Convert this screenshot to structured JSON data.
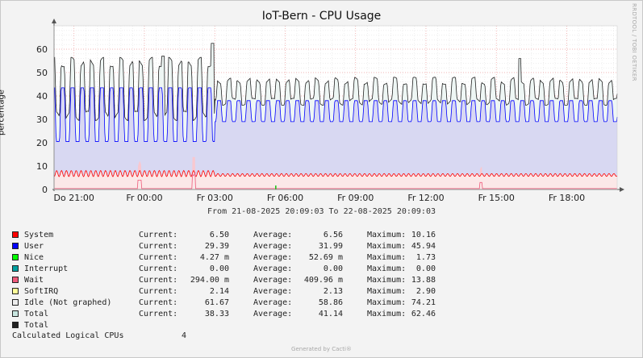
{
  "chart_data": {
    "type": "area",
    "title": "IoT-Bern - CPU Usage",
    "ylabel": "percentage",
    "ylim": [
      0,
      70
    ],
    "yticks": [
      0,
      10,
      20,
      30,
      40,
      50,
      60
    ],
    "xticks": [
      "Do 21:00",
      "Fr 00:00",
      "Fr 03:00",
      "Fr 06:00",
      "Fr 09:00",
      "Fr 12:00",
      "Fr 15:00",
      "Fr 18:00"
    ],
    "xlim_hours": [
      20.15,
      44.15
    ],
    "grid": true,
    "date_range": "From 21-08-2025 20:09:03 To 22-08-2025 20:09:03",
    "watermark": "RRDTOOL / TOBI OETIKER",
    "series": [
      {
        "name": "System",
        "color": "#ff0000",
        "current": "6.50",
        "average": "6.56",
        "maximum": "10.16"
      },
      {
        "name": "User",
        "color": "#0000ff",
        "current": "29.39",
        "average": "31.99",
        "maximum": "45.94"
      },
      {
        "name": "Nice",
        "color": "#00ff00",
        "current": "4.27 m",
        "average": "52.69 m",
        "maximum": "1.73"
      },
      {
        "name": "Interrupt",
        "color": "#00a0a0",
        "current": "0.00",
        "average": "0.00",
        "maximum": "0.00"
      },
      {
        "name": "Wait",
        "color": "#ee5a7a",
        "current": "294.00 m",
        "average": "409.96 m",
        "maximum": "13.88"
      },
      {
        "name": "SoftIRQ",
        "color": "#ffff99",
        "current": "2.14",
        "average": "2.13",
        "maximum": "2.90"
      },
      {
        "name": "Idle (Not graphed)",
        "color": "#eeeeee",
        "current": "61.67",
        "average": "58.86",
        "maximum": "74.21"
      },
      {
        "name": "Total",
        "color": "#c8e6e0",
        "current": "38.33",
        "average": "41.14",
        "maximum": "62.46"
      },
      {
        "name": "Total",
        "color": "#222222"
      }
    ],
    "labels": {
      "current": "Current:",
      "average": "Average:",
      "maximum": "Maximum:"
    },
    "calculated_cpus_label": "Calculated Logical CPUs",
    "calculated_cpus_value": "4"
  },
  "footer": "Generated by Cacti®"
}
